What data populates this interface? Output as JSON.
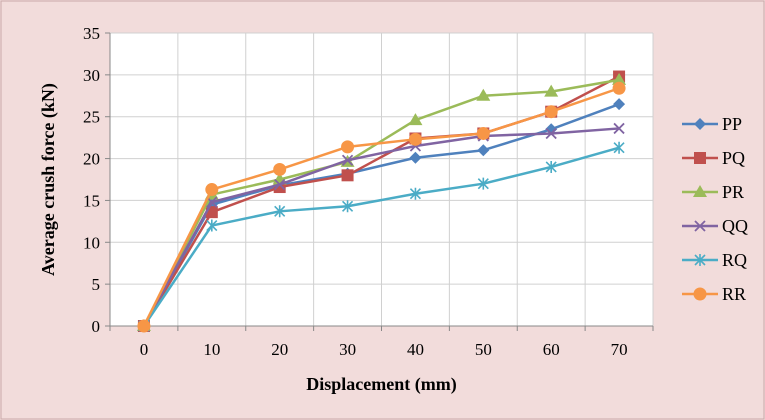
{
  "chart_data": {
    "type": "line",
    "xlabel": "Displacement (mm)",
    "ylabel": "Average crush force (kN)",
    "x": [
      0,
      10,
      20,
      30,
      40,
      50,
      60,
      70
    ],
    "ylim": [
      0,
      35
    ],
    "yticks": [
      0,
      5,
      10,
      15,
      20,
      25,
      30,
      35
    ],
    "grid": true,
    "legend_position": "right",
    "background_color": "#f2dcdb",
    "plot_background_color": "#ffffff",
    "series": [
      {
        "name": "PP",
        "color": "#4f81bd",
        "marker": "diamond",
        "values": [
          0,
          14.5,
          16.8,
          18.2,
          20.1,
          21.0,
          23.5,
          26.5
        ]
      },
      {
        "name": "PQ",
        "color": "#c0504d",
        "marker": "square",
        "values": [
          0,
          13.6,
          16.6,
          18.0,
          22.4,
          23.0,
          25.6,
          29.8
        ]
      },
      {
        "name": "PR",
        "color": "#9bbb59",
        "marker": "triangle",
        "values": [
          0,
          15.7,
          17.5,
          19.6,
          24.6,
          27.5,
          28.0,
          29.4
        ]
      },
      {
        "name": "QQ",
        "color": "#8064a2",
        "marker": "x",
        "values": [
          0,
          14.8,
          16.9,
          19.8,
          21.5,
          22.7,
          23.0,
          23.6
        ]
      },
      {
        "name": "RQ",
        "color": "#4bacc6",
        "marker": "star",
        "values": [
          0,
          12.0,
          13.7,
          14.3,
          15.8,
          17.0,
          19.0,
          21.3
        ]
      },
      {
        "name": "RR",
        "color": "#f79646",
        "marker": "circle",
        "values": [
          0,
          16.3,
          18.7,
          21.4,
          22.3,
          23.0,
          25.6,
          28.4
        ]
      }
    ]
  }
}
